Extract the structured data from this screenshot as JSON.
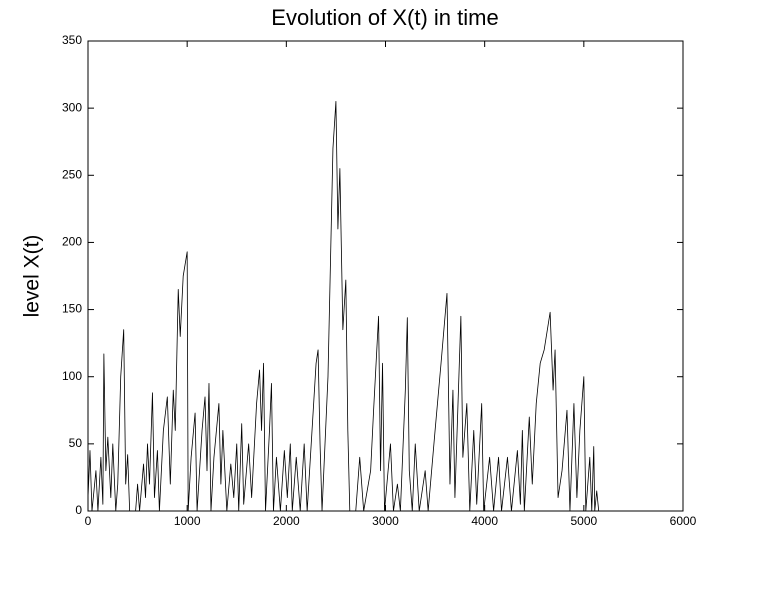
{
  "chart_data": {
    "type": "line",
    "title": "Evolution of X(t) in time",
    "y_label": "level X(t)",
    "color": "#000000",
    "x": [
      0,
      20,
      40,
      80,
      100,
      130,
      150,
      160,
      180,
      200,
      230,
      250,
      280,
      300,
      330,
      360,
      380,
      400,
      420,
      480,
      500,
      520,
      560,
      580,
      600,
      620,
      650,
      670,
      700,
      720,
      760,
      800,
      830,
      860,
      880,
      910,
      930,
      960,
      1000,
      1010,
      1040,
      1080,
      1100,
      1150,
      1180,
      1200,
      1220,
      1240,
      1270,
      1320,
      1340,
      1360,
      1400,
      1440,
      1470,
      1500,
      1520,
      1550,
      1570,
      1620,
      1650,
      1700,
      1730,
      1750,
      1770,
      1790,
      1830,
      1850,
      1870,
      1900,
      1940,
      1980,
      2010,
      2040,
      2060,
      2100,
      2140,
      2180,
      2210,
      2300,
      2320,
      2340,
      2360,
      2420,
      2470,
      2500,
      2520,
      2540,
      2570,
      2600,
      2620,
      2640,
      2700,
      2740,
      2780,
      2850,
      2880,
      2930,
      2950,
      2970,
      2990,
      3050,
      3080,
      3120,
      3150,
      3200,
      3220,
      3240,
      3270,
      3300,
      3340,
      3400,
      3430,
      3500,
      3560,
      3620,
      3650,
      3680,
      3700,
      3760,
      3780,
      3820,
      3850,
      3890,
      3920,
      3970,
      3990,
      4050,
      4090,
      4140,
      4170,
      4230,
      4270,
      4330,
      4360,
      4380,
      4400,
      4450,
      4480,
      4520,
      4560,
      4600,
      4660,
      4690,
      4710,
      4740,
      4780,
      4830,
      4860,
      4900,
      4930,
      4960,
      5000,
      5020,
      5060,
      5080,
      5100,
      5110,
      5130,
      5150
    ],
    "values": [
      10,
      45,
      0,
      30,
      0,
      40,
      5,
      117,
      30,
      55,
      10,
      50,
      0,
      20,
      100,
      135,
      20,
      42,
      0,
      0,
      20,
      0,
      35,
      10,
      50,
      20,
      88,
      10,
      45,
      0,
      60,
      85,
      20,
      90,
      60,
      165,
      130,
      175,
      193,
      0,
      40,
      73,
      0,
      60,
      85,
      30,
      95,
      0,
      40,
      80,
      20,
      60,
      0,
      35,
      10,
      50,
      0,
      65,
      5,
      50,
      10,
      80,
      105,
      60,
      110,
      0,
      60,
      95,
      0,
      40,
      0,
      45,
      10,
      50,
      0,
      40,
      0,
      50,
      0,
      110,
      120,
      50,
      0,
      100,
      270,
      305,
      210,
      255,
      135,
      172,
      60,
      0,
      0,
      40,
      0,
      30,
      75,
      145,
      30,
      110,
      0,
      50,
      0,
      20,
      0,
      90,
      144,
      30,
      0,
      50,
      0,
      30,
      0,
      60,
      110,
      162,
      20,
      90,
      10,
      145,
      40,
      80,
      0,
      60,
      5,
      80,
      0,
      40,
      0,
      40,
      0,
      40,
      0,
      45,
      5,
      60,
      0,
      70,
      20,
      80,
      110,
      120,
      148,
      90,
      120,
      10,
      30,
      75,
      0,
      80,
      10,
      60,
      100,
      0,
      40,
      0,
      48,
      0,
      15,
      0
    ],
    "xlim": [
      0,
      6000
    ],
    "xticks": [
      0,
      1000,
      2000,
      3000,
      4000,
      5000,
      6000
    ],
    "ylim": [
      0,
      350
    ],
    "yticks": [
      0,
      50,
      100,
      150,
      200,
      250,
      300,
      350
    ]
  }
}
